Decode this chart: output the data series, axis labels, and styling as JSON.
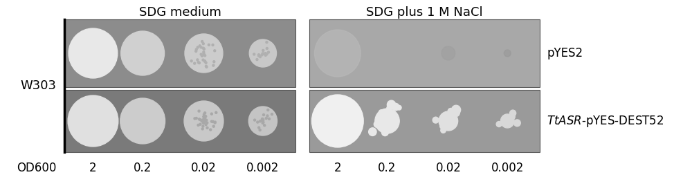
{
  "bg_color": "#ffffff",
  "panel_bg_top": "#a0a0a0",
  "panel_bg_bottom": "#888888",
  "panel_bg_salt_top": "#b0b0b0",
  "panel_bg_salt_bottom": "#999999",
  "title_sdg": "SDG medium",
  "title_salt": "SDG plus 1 M NaCl",
  "label_w303": "W303",
  "label_od600": "OD600",
  "od_values": [
    "2",
    "0.2",
    "0.02",
    "0.002"
  ],
  "label_pyes2": "pYES2",
  "label_ttasr": "TtASR-pYES-DEST52",
  "fig_width": 10.0,
  "fig_height": 2.56
}
